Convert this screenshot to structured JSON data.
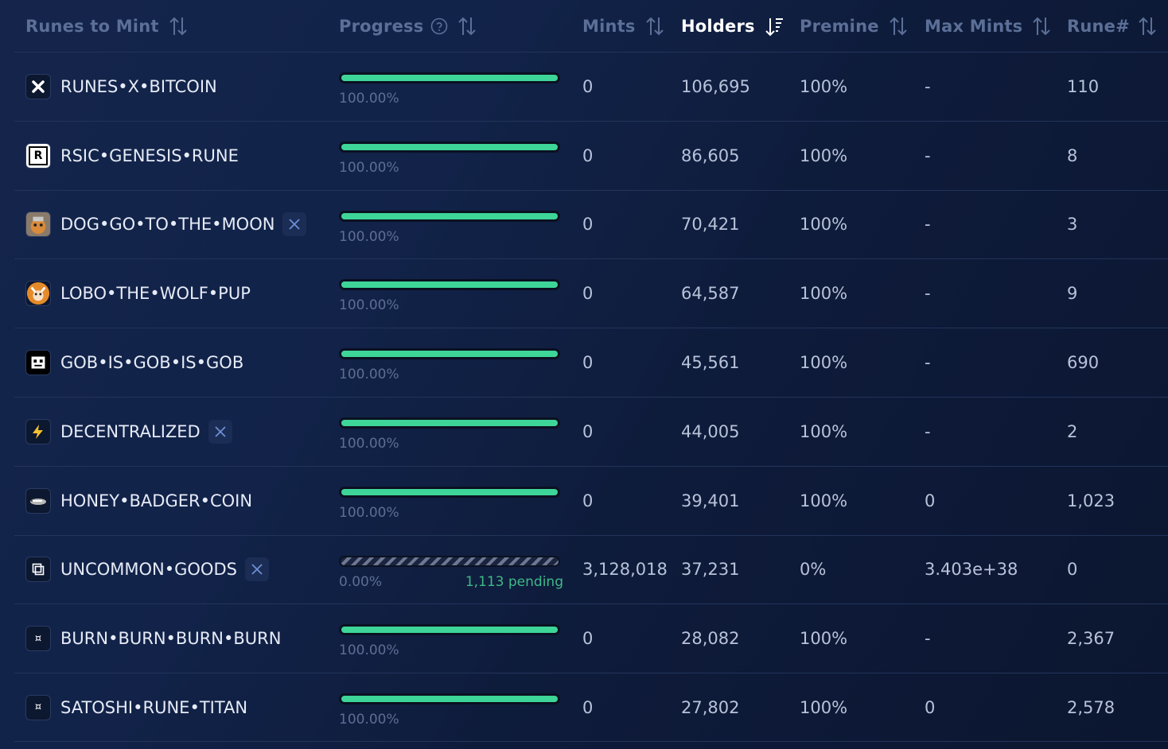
{
  "header": {
    "runes_to_mint": "Runes to Mint",
    "progress": "Progress",
    "mints": "Mints",
    "holders": "Holders",
    "premine": "Premine",
    "max_mints": "Max Mints",
    "rune_num": "Rune#"
  },
  "colors": {
    "progress_fill": "#3ed598",
    "pending_text": "#3fb986",
    "active_header": "#ffffff",
    "inactive_header": "#5b6f97"
  },
  "rows": [
    {
      "name": "RUNES•X•BITCOIN",
      "icon": "x-mark-icon",
      "x_badge": false,
      "progress": 1.0,
      "progress_label": "100.00%",
      "pending": "",
      "mints": "0",
      "holders": "106,695",
      "premine": "100%",
      "max_mints": "-",
      "rune_num": "110"
    },
    {
      "name": "RSIC•GENESIS•RUNE",
      "icon": "rsic-logo-icon",
      "x_badge": false,
      "progress": 1.0,
      "progress_label": "100.00%",
      "pending": "",
      "mints": "0",
      "holders": "86,605",
      "premine": "100%",
      "max_mints": "-",
      "rune_num": "8"
    },
    {
      "name": "DOG•GO•TO•THE•MOON",
      "icon": "dog-avatar-icon",
      "x_badge": true,
      "progress": 1.0,
      "progress_label": "100.00%",
      "pending": "",
      "mints": "0",
      "holders": "70,421",
      "premine": "100%",
      "max_mints": "-",
      "rune_num": "3"
    },
    {
      "name": "LOBO•THE•WOLF•PUP",
      "icon": "wolf-avatar-icon",
      "x_badge": false,
      "progress": 1.0,
      "progress_label": "100.00%",
      "pending": "",
      "mints": "0",
      "holders": "64,587",
      "premine": "100%",
      "max_mints": "-",
      "rune_num": "9"
    },
    {
      "name": "GOB•IS•GOB•IS•GOB",
      "icon": "gob-face-icon",
      "x_badge": false,
      "progress": 1.0,
      "progress_label": "100.00%",
      "pending": "",
      "mints": "0",
      "holders": "45,561",
      "premine": "100%",
      "max_mints": "-",
      "rune_num": "690"
    },
    {
      "name": "DECENTRALIZED",
      "icon": "lightning-icon",
      "x_badge": true,
      "progress": 1.0,
      "progress_label": "100.00%",
      "pending": "",
      "mints": "0",
      "holders": "44,005",
      "premine": "100%",
      "max_mints": "-",
      "rune_num": "2"
    },
    {
      "name": "HONEY•BADGER•COIN",
      "icon": "badger-icon",
      "x_badge": false,
      "progress": 1.0,
      "progress_label": "100.00%",
      "pending": "",
      "mints": "0",
      "holders": "39,401",
      "premine": "100%",
      "max_mints": "0",
      "rune_num": "1,023"
    },
    {
      "name": "UNCOMMON•GOODS",
      "icon": "goods-box-icon",
      "x_badge": true,
      "progress": 0.0,
      "progress_label": "0.00%",
      "pending": "1,113 pending",
      "mints": "3,128,018",
      "holders": "37,231",
      "premine": "0%",
      "max_mints": "3.403e+38",
      "rune_num": "0"
    },
    {
      "name": "BURN•BURN•BURN•BURN",
      "icon": "rune-symbol-icon",
      "x_badge": false,
      "progress": 1.0,
      "progress_label": "100.00%",
      "pending": "",
      "mints": "0",
      "holders": "28,082",
      "premine": "100%",
      "max_mints": "-",
      "rune_num": "2,367"
    },
    {
      "name": "SATOSHI•RUNE•TITAN",
      "icon": "rune-symbol-icon",
      "x_badge": false,
      "progress": 1.0,
      "progress_label": "100.00%",
      "pending": "",
      "mints": "0",
      "holders": "27,802",
      "premine": "100%",
      "max_mints": "0",
      "rune_num": "2,578"
    }
  ]
}
